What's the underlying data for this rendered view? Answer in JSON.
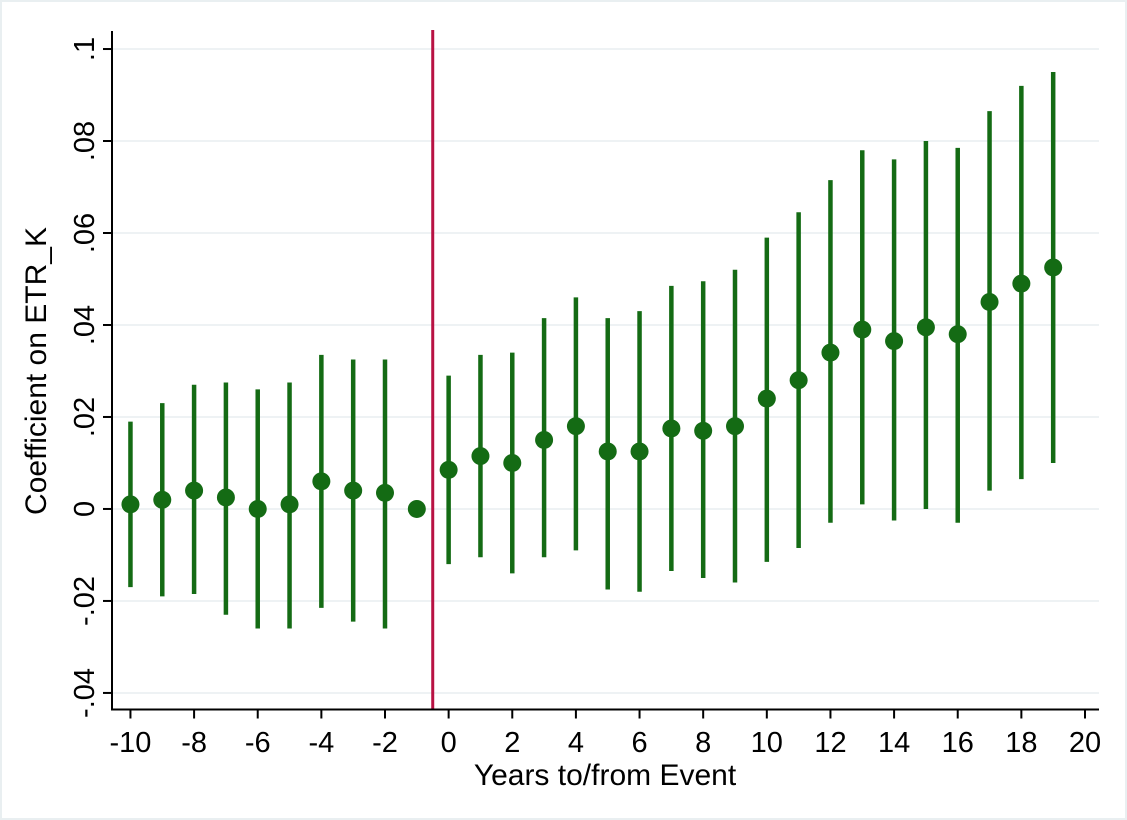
{
  "chart_data": {
    "type": "scatter",
    "subtype": "event-study-coefficient-plot",
    "title": "",
    "xlabel": "Years to/from Event",
    "ylabel": "Coefficient on ETR_K",
    "x_tick_values": [
      -10,
      -8,
      -6,
      -4,
      -2,
      0,
      2,
      4,
      6,
      8,
      10,
      12,
      14,
      16,
      18,
      20
    ],
    "x_tick_labels": [
      "-10",
      "-8",
      "-6",
      "-4",
      "-2",
      "0",
      "2",
      "4",
      "6",
      "8",
      "10",
      "12",
      "14",
      "16",
      "18",
      "20"
    ],
    "y_tick_values": [
      0.1,
      0.08,
      0.06,
      0.04,
      0.02,
      0,
      -0.02,
      -0.04
    ],
    "y_tick_labels": [
      ".1",
      ".08",
      ".06",
      ".04",
      ".02",
      "0",
      "-.02",
      "-.04"
    ],
    "xlim": [
      -10.58,
      20.44
    ],
    "ylim": [
      -0.0436,
      0.1037
    ],
    "grid": "horizontal-only",
    "legend": "none",
    "event_line_x": -0.5,
    "reference_period_x": -1,
    "colors": {
      "point": "#146b14",
      "ci_line": "#146b14",
      "event_line": "#b81243",
      "gridline": "#e9eef0",
      "axis": "#000000"
    },
    "series": [
      {
        "name": "Coefficient on ETR_K with 95% CI",
        "marker": "circle",
        "points": [
          {
            "x": -10,
            "y": 0.001,
            "ci_low": -0.017,
            "ci_high": 0.019
          },
          {
            "x": -9,
            "y": 0.002,
            "ci_low": -0.019,
            "ci_high": 0.023
          },
          {
            "x": -8,
            "y": 0.004,
            "ci_low": -0.0185,
            "ci_high": 0.027
          },
          {
            "x": -7,
            "y": 0.0025,
            "ci_low": -0.023,
            "ci_high": 0.0275
          },
          {
            "x": -6,
            "y": 0.0,
            "ci_low": -0.026,
            "ci_high": 0.026
          },
          {
            "x": -5,
            "y": 0.001,
            "ci_low": -0.026,
            "ci_high": 0.0275
          },
          {
            "x": -4,
            "y": 0.006,
            "ci_low": -0.0215,
            "ci_high": 0.0335
          },
          {
            "x": -3,
            "y": 0.004,
            "ci_low": -0.0245,
            "ci_high": 0.0325
          },
          {
            "x": -2,
            "y": 0.0035,
            "ci_low": -0.026,
            "ci_high": 0.0325
          },
          {
            "x": -1,
            "y": 0.0,
            "ci_low": null,
            "ci_high": null
          },
          {
            "x": 0,
            "y": 0.0085,
            "ci_low": -0.012,
            "ci_high": 0.029
          },
          {
            "x": 1,
            "y": 0.0115,
            "ci_low": -0.0105,
            "ci_high": 0.0335
          },
          {
            "x": 2,
            "y": 0.01,
            "ci_low": -0.014,
            "ci_high": 0.034
          },
          {
            "x": 3,
            "y": 0.015,
            "ci_low": -0.0105,
            "ci_high": 0.0415
          },
          {
            "x": 4,
            "y": 0.018,
            "ci_low": -0.009,
            "ci_high": 0.046
          },
          {
            "x": 5,
            "y": 0.0125,
            "ci_low": -0.0175,
            "ci_high": 0.0415
          },
          {
            "x": 6,
            "y": 0.0125,
            "ci_low": -0.018,
            "ci_high": 0.043
          },
          {
            "x": 7,
            "y": 0.0175,
            "ci_low": -0.0135,
            "ci_high": 0.0485
          },
          {
            "x": 8,
            "y": 0.017,
            "ci_low": -0.015,
            "ci_high": 0.0495
          },
          {
            "x": 9,
            "y": 0.018,
            "ci_low": -0.016,
            "ci_high": 0.052
          },
          {
            "x": 10,
            "y": 0.024,
            "ci_low": -0.0115,
            "ci_high": 0.059
          },
          {
            "x": 11,
            "y": 0.028,
            "ci_low": -0.0085,
            "ci_high": 0.0645
          },
          {
            "x": 12,
            "y": 0.034,
            "ci_low": -0.003,
            "ci_high": 0.0715
          },
          {
            "x": 13,
            "y": 0.039,
            "ci_low": 0.001,
            "ci_high": 0.078
          },
          {
            "x": 14,
            "y": 0.0365,
            "ci_low": -0.0025,
            "ci_high": 0.076
          },
          {
            "x": 15,
            "y": 0.0395,
            "ci_low": 0.0,
            "ci_high": 0.08
          },
          {
            "x": 16,
            "y": 0.038,
            "ci_low": -0.003,
            "ci_high": 0.0785
          },
          {
            "x": 17,
            "y": 0.045,
            "ci_low": 0.004,
            "ci_high": 0.0865
          },
          {
            "x": 18,
            "y": 0.049,
            "ci_low": 0.0065,
            "ci_high": 0.092
          },
          {
            "x": 19,
            "y": 0.0525,
            "ci_low": 0.01,
            "ci_high": 0.095
          }
        ]
      }
    ]
  }
}
